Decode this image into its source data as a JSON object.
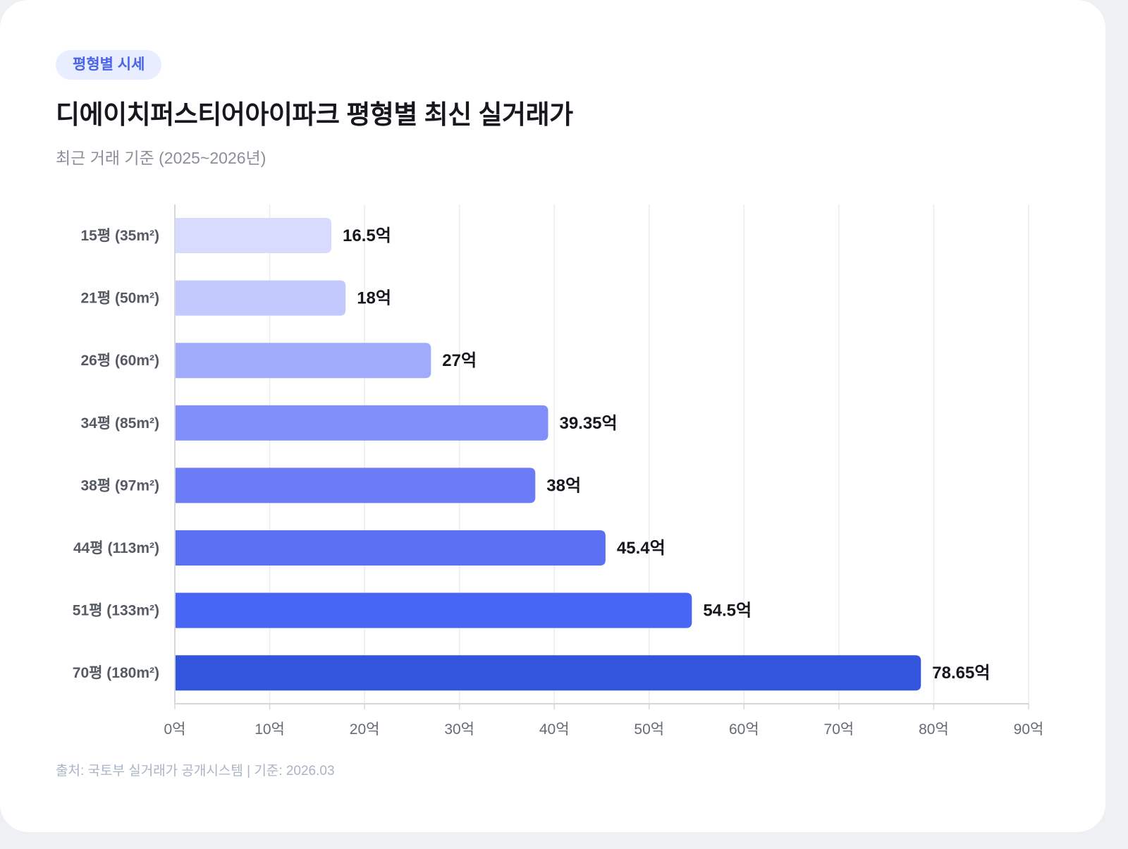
{
  "badge": "평형별 시세",
  "title": "디에이치퍼스티어아이파크 평형별 최신 실거래가",
  "subtitle": "최근 거래 기준 (2025~2026년)",
  "source": "출처: 국토부 실거래가 공개시스템 | 기준: 2026.03",
  "chart_data": {
    "type": "bar",
    "orientation": "horizontal",
    "categories": [
      "15평 (35m²)",
      "21평 (50m²)",
      "26평 (60m²)",
      "34평 (85m²)",
      "38평 (97m²)",
      "44평 (113m²)",
      "51평 (133m²)",
      "70평 (180m²)"
    ],
    "values": [
      16.5,
      18,
      27,
      39.35,
      38,
      45.4,
      54.5,
      78.65
    ],
    "value_labels": [
      "16.5억",
      "18억",
      "27억",
      "39.35억",
      "38억",
      "45.4억",
      "54.5억",
      "78.65억"
    ],
    "bar_colors": [
      "#d7dbfe",
      "#c2c9fd",
      "#a0abfb",
      "#7f8ef9",
      "#6c7cf6",
      "#5b6ff3",
      "#4766f5",
      "#3355de"
    ],
    "xlim": [
      0,
      90
    ],
    "x_ticks": [
      0,
      10,
      20,
      30,
      40,
      50,
      60,
      70,
      80,
      90
    ],
    "x_tick_labels": [
      "0억",
      "10억",
      "20억",
      "30억",
      "40억",
      "50억",
      "60억",
      "70억",
      "80억",
      "90억"
    ],
    "grid": "vertical",
    "legend": "none"
  }
}
